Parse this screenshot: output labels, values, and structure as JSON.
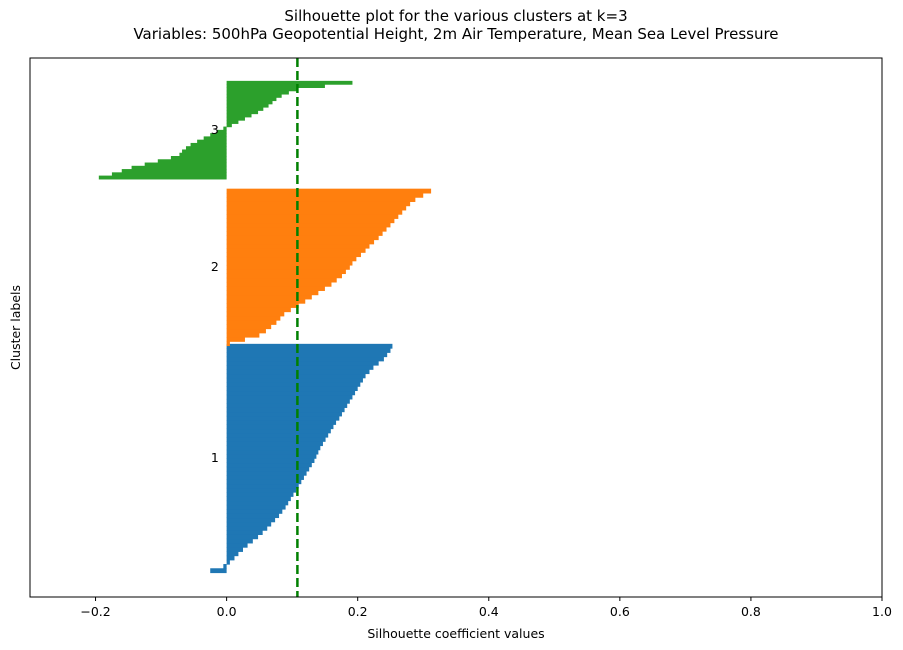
{
  "chart_data": {
    "type": "bar",
    "orientation": "horizontal",
    "title": "Silhouette plot for the various clusters at k=3",
    "subtitle": "Variables: 500hPa Geopotential Height, 2m Air Temperature, Mean Sea Level Pressure",
    "xlabel": "Silhouette coefficient values",
    "ylabel": "Cluster labels",
    "xlim": [
      -0.3,
      1.0
    ],
    "ylim": [
      0,
      330
    ],
    "xticks": [
      -0.2,
      0.0,
      0.2,
      0.4,
      0.6,
      0.8,
      1.0
    ],
    "xtick_labels": [
      "−0.2",
      "0.0",
      "0.2",
      "0.4",
      "0.6",
      "0.8",
      "1.0"
    ],
    "grid": false,
    "average_silhouette": 0.108,
    "average_line_color": "#008000",
    "clusters": [
      {
        "label": "1",
        "color": "#1f77b4",
        "y_start": 15,
        "label_y": 85,
        "sorted_values": [
          -0.025,
          -0.005,
          0.005,
          0.012,
          0.018,
          0.025,
          0.032,
          0.04,
          0.048,
          0.055,
          0.062,
          0.068,
          0.074,
          0.08,
          0.085,
          0.09,
          0.094,
          0.098,
          0.102,
          0.106,
          0.11,
          0.114,
          0.118,
          0.122,
          0.126,
          0.13,
          0.134,
          0.137,
          0.14,
          0.143,
          0.147,
          0.151,
          0.155,
          0.159,
          0.163,
          0.167,
          0.172,
          0.176,
          0.18,
          0.184,
          0.188,
          0.192,
          0.196,
          0.2,
          0.204,
          0.208,
          0.212,
          0.218,
          0.224,
          0.232,
          0.24,
          0.245,
          0.25,
          0.253
        ]
      },
      {
        "label": "2",
        "color": "#ff7f0e",
        "y_start": 154,
        "label_y": 202,
        "sorted_values": [
          0.005,
          0.028,
          0.05,
          0.06,
          0.068,
          0.076,
          0.082,
          0.088,
          0.098,
          0.11,
          0.12,
          0.13,
          0.14,
          0.15,
          0.16,
          0.168,
          0.176,
          0.182,
          0.188,
          0.192,
          0.198,
          0.205,
          0.212,
          0.218,
          0.225,
          0.232,
          0.238,
          0.244,
          0.25,
          0.256,
          0.262,
          0.268,
          0.274,
          0.28,
          0.288,
          0.3,
          0.312
        ]
      },
      {
        "label": "3",
        "color": "#2ca02c",
        "y_start": 256,
        "label_y": 286,
        "sorted_values": [
          -0.195,
          -0.175,
          -0.16,
          -0.145,
          -0.125,
          -0.105,
          -0.085,
          -0.072,
          -0.068,
          -0.062,
          -0.055,
          -0.045,
          -0.035,
          -0.025,
          -0.015,
          -0.005,
          0.008,
          0.018,
          0.028,
          0.038,
          0.048,
          0.056,
          0.064,
          0.07,
          0.076,
          0.084,
          0.095,
          0.108,
          0.15,
          0.192
        ]
      }
    ]
  }
}
